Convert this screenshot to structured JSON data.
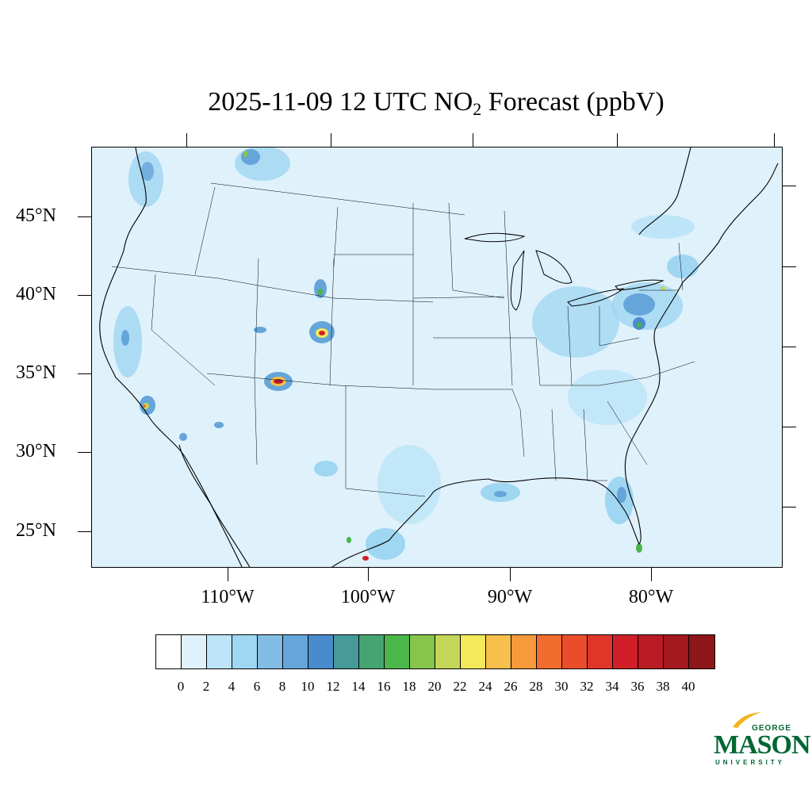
{
  "title": {
    "prefix": "2025-11-09 12 UTC NO",
    "subscript": "2",
    "suffix": " Forecast (ppbV)"
  },
  "map": {
    "lat_labels": [
      "45°N",
      "40°N",
      "35°N",
      "30°N",
      "25°N"
    ],
    "lon_labels": [
      "110°W",
      "100°W",
      "90°W",
      "80°W"
    ],
    "background_color": "#dff1fb"
  },
  "colorbar": {
    "colors": [
      "#ffffff",
      "#dff1fb",
      "#bde5f7",
      "#9fd6f2",
      "#82bde6",
      "#65a5da",
      "#4a8bcb",
      "#469a9a",
      "#45a470",
      "#4bb649",
      "#86c44b",
      "#c4d657",
      "#f4e95a",
      "#f7bf4b",
      "#f69a3c",
      "#f26c2d",
      "#ea4d2b",
      "#e0362a",
      "#d01f28",
      "#b91b24",
      "#a4191f",
      "#8e1519"
    ],
    "labels": [
      "0",
      "2",
      "4",
      "6",
      "8",
      "10",
      "12",
      "14",
      "16",
      "18",
      "20",
      "22",
      "24",
      "26",
      "28",
      "30",
      "32",
      "34",
      "36",
      "38",
      "40"
    ]
  },
  "logo": {
    "top_text": "GEORGE",
    "main_text": "MASON",
    "bottom_text": "UNIVERSITY",
    "color": "#006633",
    "accent_color": "#f2b31b"
  }
}
